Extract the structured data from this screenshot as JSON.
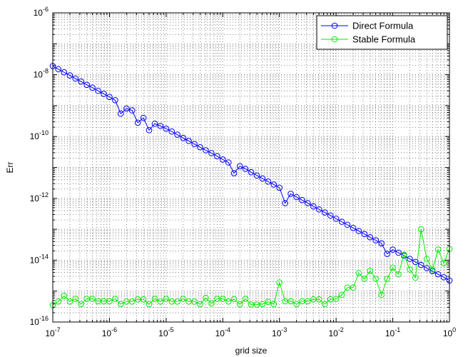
{
  "chart_data": {
    "type": "line",
    "title": "",
    "xlabel": "grid size",
    "ylabel": "Err",
    "xscale": "log",
    "yscale": "log",
    "xlim": [
      1e-07,
      1
    ],
    "ylim": [
      1e-16,
      1e-06
    ],
    "x_ticks": [
      1e-07,
      1e-06,
      1e-05,
      0.0001,
      0.001,
      0.01,
      0.1,
      1
    ],
    "x_tick_labels": [
      {
        "base": "10",
        "exp": "-7"
      },
      {
        "base": "10",
        "exp": "-6"
      },
      {
        "base": "10",
        "exp": "-5"
      },
      {
        "base": "10",
        "exp": "-4"
      },
      {
        "base": "10",
        "exp": "-3"
      },
      {
        "base": "10",
        "exp": "-2"
      },
      {
        "base": "10",
        "exp": "-1"
      },
      {
        "base": "10",
        "exp": "0"
      }
    ],
    "y_ticks": [
      1e-16,
      1e-14,
      1e-12,
      1e-10,
      1e-08,
      1e-06
    ],
    "y_tick_labels": [
      {
        "base": "10",
        "exp": "-16"
      },
      {
        "base": "10",
        "exp": "-14"
      },
      {
        "base": "10",
        "exp": "-12"
      },
      {
        "base": "10",
        "exp": "-10"
      },
      {
        "base": "10",
        "exp": "-8"
      },
      {
        "base": "10",
        "exp": "-6"
      }
    ],
    "grid": true,
    "legend_position": "top-right",
    "series": [
      {
        "name": "Direct Formula",
        "color": "#0000ff",
        "marker": "circle",
        "x": [
          1e-07,
          1.25e-07,
          1.58e-07,
          2e-07,
          2.51e-07,
          3.16e-07,
          3.98e-07,
          5.01e-07,
          6.31e-07,
          7.94e-07,
          1e-06,
          1.26e-06,
          1.58e-06,
          2e-06,
          2.51e-06,
          3.16e-06,
          3.98e-06,
          5.01e-06,
          6.31e-06,
          7.94e-06,
          1e-05,
          1.26e-05,
          1.58e-05,
          2e-05,
          2.51e-05,
          3.16e-05,
          3.98e-05,
          5.01e-05,
          6.31e-05,
          7.94e-05,
          0.0001,
          0.000126,
          0.000158,
          0.0002,
          0.000251,
          0.000316,
          0.000398,
          0.000501,
          0.000631,
          0.000794,
          0.001,
          0.00126,
          0.00158,
          0.002,
          0.00251,
          0.00316,
          0.00398,
          0.00501,
          0.00631,
          0.00794,
          0.01,
          0.0126,
          0.0158,
          0.02,
          0.0251,
          0.0316,
          0.0398,
          0.0501,
          0.0631,
          0.0794,
          0.1,
          0.126,
          0.158,
          0.2,
          0.251,
          0.316,
          0.398,
          0.501,
          0.631,
          0.794,
          1
        ],
        "y": [
          1.9e-08,
          1.5e-08,
          1.2e-08,
          9.5e-09,
          7.5e-09,
          6e-09,
          4.7e-09,
          3.8e-09,
          3e-09,
          2.4e-09,
          1.9e-09,
          1.5e-09,
          5.5e-10,
          8e-10,
          7e-10,
          2.8e-10,
          4e-10,
          1.6e-10,
          2.6e-10,
          2.2e-10,
          1.8e-10,
          1.45e-10,
          1.15e-10,
          9e-11,
          7.2e-11,
          5.7e-11,
          4.5e-11,
          3.6e-11,
          2.9e-11,
          2.3e-11,
          1.8e-11,
          1.45e-11,
          6.5e-12,
          1.1e-11,
          9e-12,
          7e-12,
          5.5e-12,
          4.4e-12,
          3.5e-12,
          2.8e-12,
          2.2e-12,
          7e-13,
          1.4e-12,
          1.1e-12,
          8.8e-13,
          7e-13,
          5.5e-13,
          4.4e-13,
          3.5e-13,
          2.8e-13,
          2.2e-13,
          1.75e-13,
          1.4e-13,
          1.1e-13,
          8.8e-14,
          7e-14,
          5.5e-14,
          4.4e-14,
          3.5e-14,
          1.6e-14,
          2.2e-14,
          1.75e-14,
          1.4e-14,
          1.1e-14,
          8.8e-15,
          7e-15,
          5.5e-15,
          4.4e-15,
          3.5e-15,
          2.8e-15,
          2.2e-15
        ]
      },
      {
        "name": "Stable Formula",
        "color": "#00ee00",
        "marker": "circle",
        "x": [
          1e-07,
          1.25e-07,
          1.58e-07,
          2e-07,
          2.51e-07,
          3.16e-07,
          3.98e-07,
          5.01e-07,
          6.31e-07,
          7.94e-07,
          1e-06,
          1.26e-06,
          1.58e-06,
          2e-06,
          2.51e-06,
          3.16e-06,
          3.98e-06,
          5.01e-06,
          6.31e-06,
          7.94e-06,
          1e-05,
          1.26e-05,
          1.58e-05,
          2e-05,
          2.51e-05,
          3.16e-05,
          3.98e-05,
          5.01e-05,
          6.31e-05,
          7.94e-05,
          0.0001,
          0.000126,
          0.000158,
          0.0002,
          0.000251,
          0.000316,
          0.000398,
          0.000501,
          0.000631,
          0.000794,
          0.001,
          0.00126,
          0.00158,
          0.002,
          0.00251,
          0.00316,
          0.00398,
          0.00501,
          0.00631,
          0.00794,
          0.01,
          0.0126,
          0.0158,
          0.02,
          0.0251,
          0.0316,
          0.0398,
          0.0501,
          0.0631,
          0.0794,
          0.1,
          0.126,
          0.158,
          0.2,
          0.251,
          0.316,
          0.398,
          0.501,
          0.631,
          0.794,
          1
        ],
        "y": [
          3.5e-16,
          4.6e-16,
          7e-16,
          4.6e-16,
          5.6e-16,
          3.8e-16,
          5.6e-16,
          5.6e-16,
          4.7e-16,
          4.7e-16,
          4.7e-16,
          5.6e-16,
          3.8e-16,
          4.6e-16,
          4.6e-16,
          5.4e-16,
          5.4e-16,
          3.8e-16,
          5.6e-16,
          4.6e-16,
          5.6e-16,
          4.6e-16,
          4.6e-16,
          5.6e-16,
          4.6e-16,
          4.6e-16,
          3.8e-16,
          6e-16,
          4e-16,
          5.6e-16,
          5.6e-16,
          4.6e-16,
          5.5e-16,
          3.8e-16,
          5.6e-16,
          3.7e-16,
          3.7e-16,
          3.8e-16,
          4.5e-16,
          3.8e-16,
          1.9e-15,
          4.7e-16,
          4.7e-16,
          3.8e-16,
          4.7e-16,
          4.7e-16,
          5.4e-16,
          5.4e-16,
          3.8e-16,
          5.4e-16,
          5.6e-16,
          7.5e-16,
          1.3e-15,
          1.3e-15,
          3.8e-15,
          2.5e-15,
          4.5e-15,
          2.5e-15,
          7.5e-16,
          2.5e-15,
          5.7e-15,
          3.5e-15,
          1.5e-14,
          5e-15,
          2.7e-15,
          1e-13,
          1.1e-14,
          5e-15,
          2.2e-14,
          8e-15,
          2.3e-14
        ]
      }
    ]
  }
}
